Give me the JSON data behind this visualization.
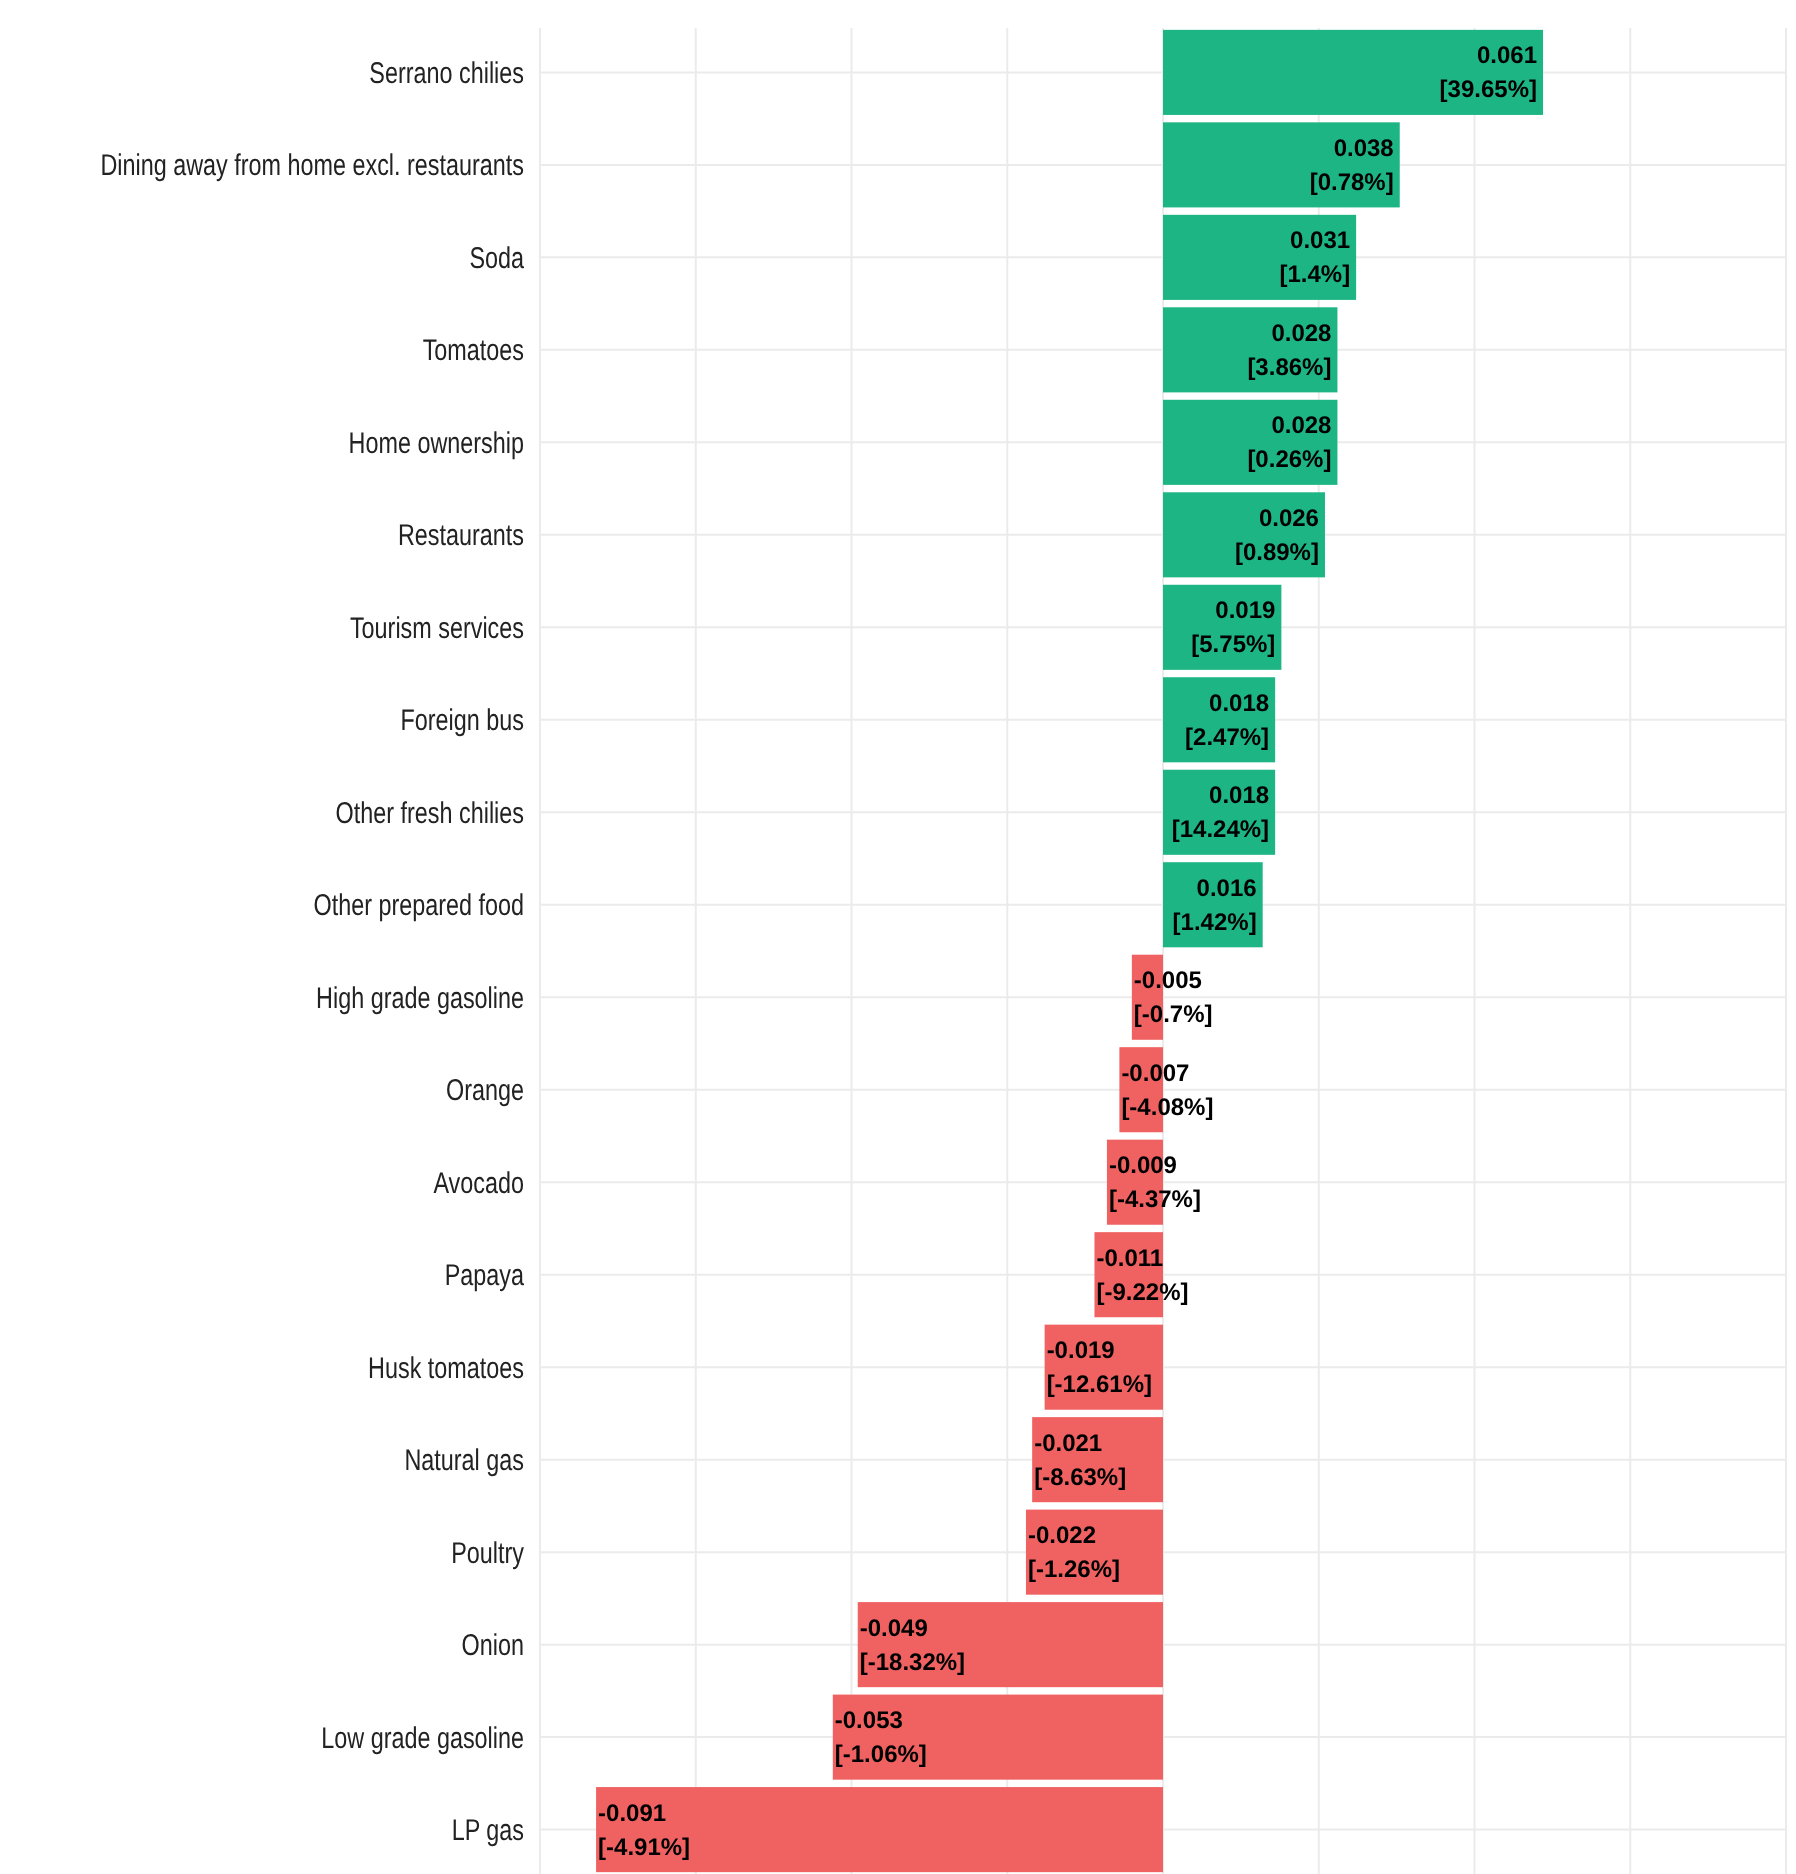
{
  "chart_data": {
    "type": "bar",
    "orientation": "horizontal",
    "categories": [
      "Serrano chilies",
      "Dining away from home excl. restaurants",
      "Soda",
      "Tomatoes",
      "Home ownership",
      "Restaurants ",
      "Tourism services",
      "Foreign bus",
      "Other fresh chilies",
      "Other prepared food",
      "High grade gasoline",
      "Orange",
      "Avocado",
      "Papaya",
      "Husk tomatoes",
      "Natural gas",
      "Poultry",
      "Onion",
      "Low grade gasoline",
      "LP gas"
    ],
    "values": [
      0.061,
      0.038,
      0.031,
      0.028,
      0.028,
      0.026,
      0.019,
      0.018,
      0.018,
      0.016,
      -0.005,
      -0.007,
      -0.009,
      -0.011,
      -0.019,
      -0.021,
      -0.022,
      -0.049,
      -0.053,
      -0.091
    ],
    "value_labels": [
      "0.061\n[39.65%]",
      "0.038\n[0.78%]",
      "0.031\n[1.4%]",
      "0.028\n[3.86%]",
      "0.028\n[0.26%]",
      "0.026\n[0.89%]",
      "0.019\n[5.75%]",
      "0.018\n[2.47%]",
      "0.018\n[14.24%]",
      "0.016\n[1.42%]",
      "-0.005\n[-0.7%]",
      "-0.007\n[-4.08%]",
      "-0.009\n[-4.37%]",
      "-0.011\n[-9.22%]",
      "-0.019\n[-12.61%]",
      "-0.021\n[-8.63%]",
      "-0.022\n[-1.26%]",
      "-0.049\n[-18.32%]",
      "-0.053\n[-1.06%]",
      "-0.091\n[-4.91%]"
    ],
    "colors": [
      "#1db584",
      "#1db584",
      "#1db584",
      "#1db584",
      "#1db584",
      "#1db584",
      "#1db584",
      "#1db584",
      "#1db584",
      "#1db584",
      "#f06262",
      "#f06262",
      "#f06262",
      "#f06262",
      "#f06262",
      "#f06262",
      "#f06262",
      "#f06262",
      "#f06262",
      "#f06262"
    ],
    "xlim": [
      -0.1,
      0.1
    ],
    "xticks": [
      {
        "value": -0.1,
        "label": null
      },
      {
        "value": -0.075,
        "label": null
      },
      {
        "value": -0.05,
        "label": null
      },
      {
        "value": -0.025,
        "label": null
      },
      {
        "value": 0,
        "label": null
      },
      {
        "value": 0.025,
        "label": null
      },
      {
        "value": 0.05,
        "label": null
      },
      {
        "value": 0.075,
        "label": null
      },
      {
        "value": 0.1,
        "label": null
      }
    ],
    "tick_labels": "y",
    "grid": true
  }
}
